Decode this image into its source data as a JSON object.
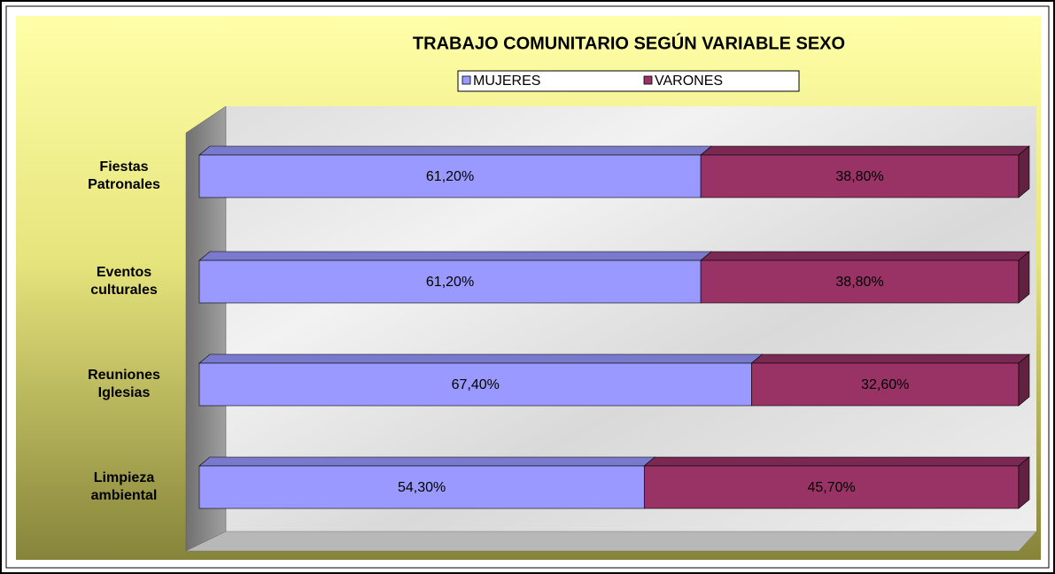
{
  "chart_data": {
    "type": "stacked_bar_horizontal",
    "title": "TRABAJO COMUNITARIO SEGÚN VARIABLE SEXO",
    "categories": [
      "Fiestas Patronales",
      "Eventos culturales",
      "Reuniones Iglesias",
      "Limpieza ambiental"
    ],
    "series": [
      {
        "name": "MUJERES",
        "color": "#9999ff",
        "values": [
          61.2,
          61.2,
          67.4,
          54.3
        ],
        "value_labels": [
          "61,20%",
          "61,20%",
          "67,40%",
          "54,30%"
        ]
      },
      {
        "name": "VARONES",
        "color": "#993366",
        "values": [
          38.8,
          38.8,
          32.6,
          45.7
        ],
        "value_labels": [
          "38,80%",
          "38,80%",
          "32,60%",
          "45,70%"
        ]
      }
    ],
    "xlim": [
      0,
      100
    ]
  }
}
